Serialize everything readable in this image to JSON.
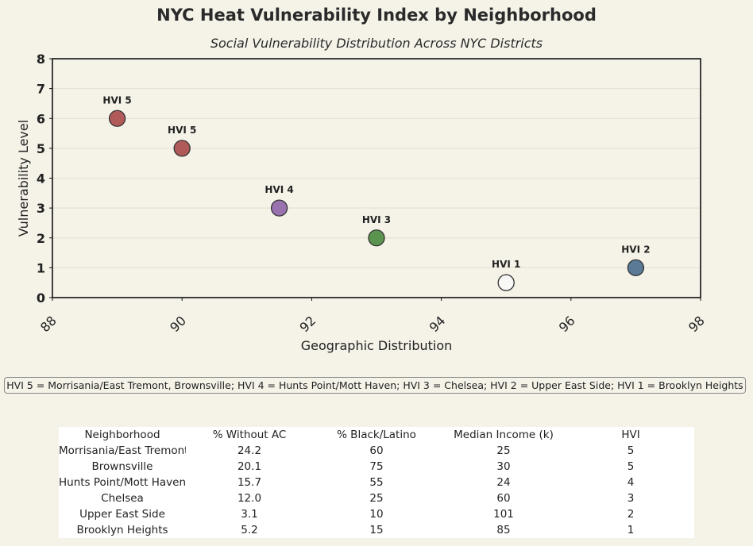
{
  "title": "NYC Heat Vulnerability Index by Neighborhood",
  "subtitle": "Social Vulnerability Distribution Across NYC Districts",
  "chart_data": {
    "type": "scatter",
    "xlabel": "Geographic Distribution",
    "ylabel": "Vulnerability Level",
    "xlim": [
      88,
      98
    ],
    "ylim": [
      0,
      8
    ],
    "xticks": [
      "88",
      "90",
      "92",
      "94",
      "96",
      "98"
    ],
    "yticks": [
      "0",
      "1",
      "2",
      "3",
      "4",
      "5",
      "6",
      "7",
      "8"
    ],
    "grid": "horizontal",
    "points": [
      {
        "x": 89,
        "y": 6,
        "label": "HVI 5",
        "color": "#b05a5a"
      },
      {
        "x": 90,
        "y": 5,
        "label": "HVI 5",
        "color": "#b05a5a"
      },
      {
        "x": 91.5,
        "y": 3,
        "label": "HVI 4",
        "color": "#9b72b0"
      },
      {
        "x": 93,
        "y": 2,
        "label": "HVI 3",
        "color": "#5b944f"
      },
      {
        "x": 95,
        "y": 0.5,
        "label": "HVI 1",
        "color": "#f8f8f6"
      },
      {
        "x": 97,
        "y": 1,
        "label": "HVI 2",
        "color": "#5a7a96"
      }
    ]
  },
  "note": "HVI 5 = Morrisania/East Tremont, Brownsville; HVI 4 = Hunts Point/Mott Haven; HVI 3 = Chelsea; HVI 2 = Upper East Side; HVI 1 = Brooklyn Heights",
  "table": {
    "headers": [
      "Neighborhood",
      "% Without AC",
      "% Black/Latino",
      "Median Income (k)",
      "HVI"
    ],
    "rows": [
      [
        "Morrisania/East Tremont",
        "24.2",
        "60",
        "25",
        "5"
      ],
      [
        "Brownsville",
        "20.1",
        "75",
        "30",
        "5"
      ],
      [
        "Hunts Point/Mott Haven",
        "15.7",
        "55",
        "24",
        "4"
      ],
      [
        "Chelsea",
        "12.0",
        "25",
        "60",
        "3"
      ],
      [
        "Upper East Side",
        "3.1",
        "10",
        "101",
        "2"
      ],
      [
        "Brooklyn Heights",
        "5.2",
        "15",
        "85",
        "1"
      ]
    ]
  }
}
